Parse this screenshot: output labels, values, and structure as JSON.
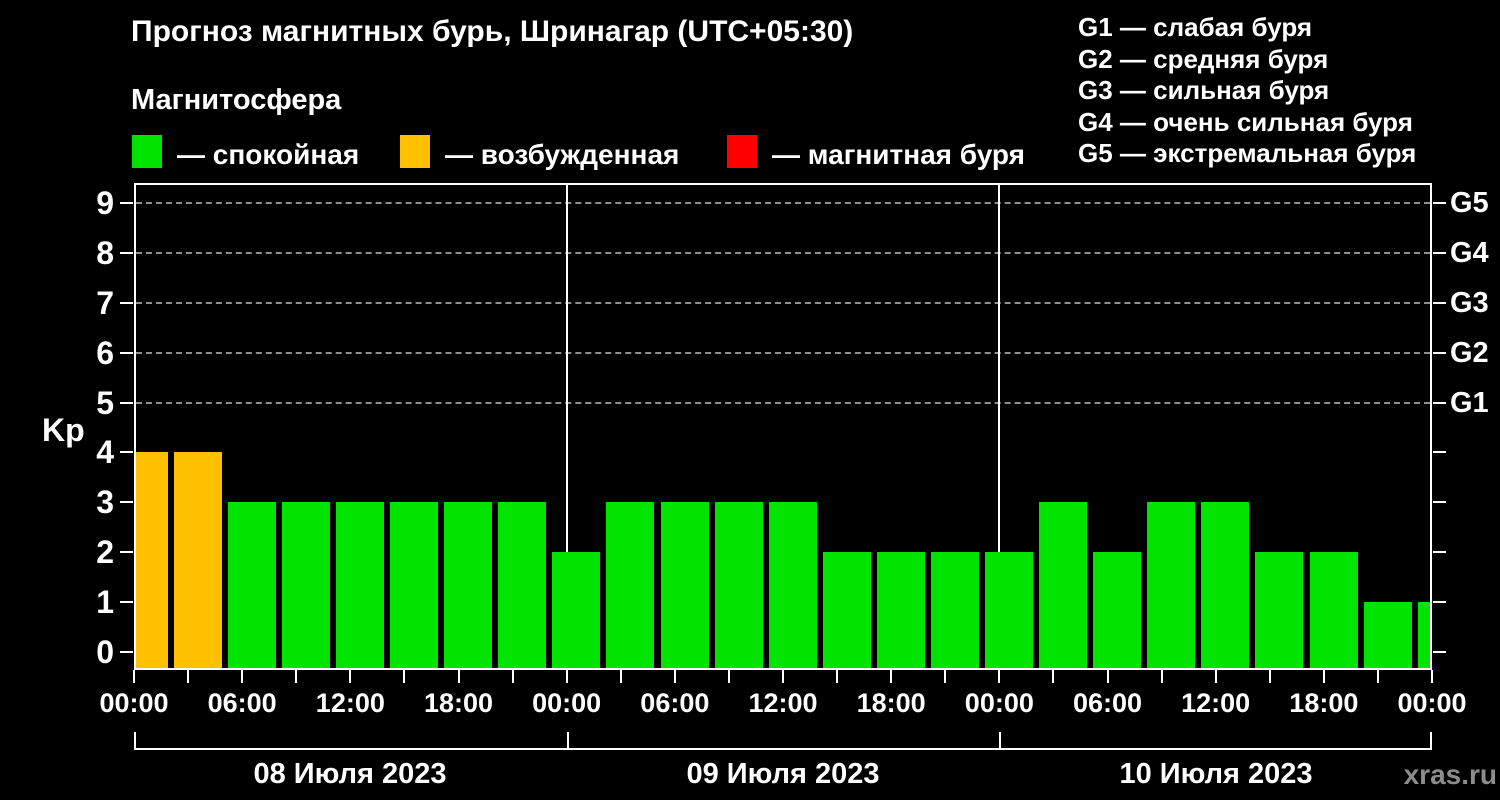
{
  "title": "Прогноз магнитных бурь, Шринагар (UTC+05:30)",
  "subtitle": "Магнитосфера",
  "legend": [
    {
      "name": "quiet",
      "label": "— спокойная",
      "color": "#00e400"
    },
    {
      "name": "excited",
      "label": "— возбужденная",
      "color": "#ffc000"
    },
    {
      "name": "storm",
      "label": "— магнитная буря",
      "color": "#ff0000"
    }
  ],
  "storm_scale": [
    {
      "label": "G1 — слабая буря"
    },
    {
      "label": "G2 — средняя буря"
    },
    {
      "label": "G3 — сильная буря"
    },
    {
      "label": "G4 — очень сильная буря"
    },
    {
      "label": "G5 — экстремальная буря"
    }
  ],
  "watermark": "xras.ru",
  "chart_data": {
    "type": "bar",
    "ylabel": "Kp",
    "ylim": [
      0,
      9
    ],
    "yticks": [
      0,
      1,
      2,
      3,
      4,
      5,
      6,
      7,
      8,
      9
    ],
    "grid_levels": [
      5,
      6,
      7,
      8,
      9
    ],
    "right_axis_labels": [
      {
        "label": "G5",
        "kp": 9
      },
      {
        "label": "G4",
        "kp": 8
      },
      {
        "label": "G3",
        "kp": 7
      },
      {
        "label": "G2",
        "kp": 6
      },
      {
        "label": "G1",
        "kp": 5
      }
    ],
    "hours_per_bar": 3,
    "x_tick_labels_6h": [
      "00:00",
      "06:00",
      "12:00",
      "18:00",
      "00:00",
      "06:00",
      "12:00",
      "18:00",
      "00:00",
      "06:00",
      "12:00",
      "18:00",
      "00:00"
    ],
    "days": [
      {
        "date": "08 Июля 2023",
        "values": [
          4,
          4,
          3,
          3,
          3,
          3,
          3,
          3
        ]
      },
      {
        "date": "09 Июля 2023",
        "values": [
          2,
          3,
          3,
          3,
          3,
          2,
          2,
          2
        ]
      },
      {
        "date": "10 Июля 2023",
        "values": [
          2,
          3,
          2,
          3,
          3,
          2,
          2,
          1
        ]
      }
    ],
    "trailing_bar_kp": 1,
    "colors": {
      "quiet": "#00e400",
      "excited": "#ffc000",
      "storm": "#ff0000"
    },
    "color_rule": "Kp<=3 quiet(green), Kp=4 excited(orange), Kp>=5 storm(red)"
  }
}
